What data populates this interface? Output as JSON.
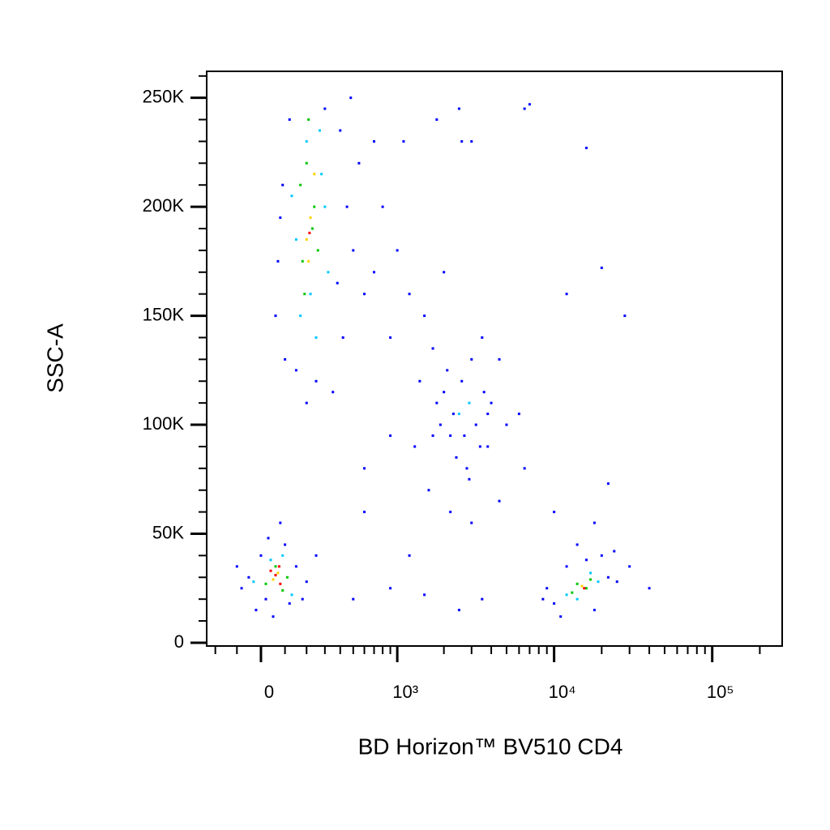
{
  "chart_data": {
    "type": "scatter",
    "x_label": "BD Horizon™ BV510 CD4",
    "y_label": "SSC-A",
    "xscale": "biexponential",
    "xlim": [
      -245,
      277000
    ],
    "ylim": [
      -1500,
      262144
    ],
    "xticks": [
      0,
      {
        "value": 1000,
        "label": "10³"
      },
      {
        "value": 10000,
        "label": "10⁴"
      },
      {
        "value": 100000,
        "label": "10⁵"
      }
    ],
    "xminorticks": [
      -200,
      -100,
      100,
      200,
      300,
      400,
      500,
      600,
      700,
      800,
      900,
      2000,
      3000,
      4000,
      5000,
      6000,
      7000,
      8000,
      9000,
      20000,
      30000,
      40000,
      50000,
      60000,
      70000,
      80000,
      90000,
      200000
    ],
    "yticks": [
      0,
      {
        "value": 50000,
        "label": "50K"
      },
      {
        "value": 100000,
        "label": "100K"
      },
      {
        "value": 150000,
        "label": "150K"
      },
      {
        "value": 200000,
        "label": "200K"
      },
      {
        "value": 250000,
        "label": "250K"
      }
    ],
    "yminorticks": [
      10000,
      20000,
      30000,
      40000,
      60000,
      70000,
      80000,
      90000,
      110000,
      120000,
      130000,
      140000,
      160000,
      170000,
      180000,
      190000,
      210000,
      220000,
      230000,
      240000,
      260000
    ],
    "series": [
      {
        "color": "#0000ff",
        "x": [
          60,
          90,
          120,
          400,
          450,
          380,
          100,
          150,
          500,
          420,
          70,
          300,
          250,
          550,
          80,
          350,
          600,
          700,
          480,
          200,
          800,
          1000,
          1200,
          900,
          1500,
          1100,
          1800,
          2500,
          3000,
          1400,
          1700,
          2000,
          3500,
          4000,
          5000,
          6000,
          1300,
          1600,
          2200,
          3000,
          4500,
          2800,
          3800,
          2100,
          900,
          700,
          600,
          4500,
          6500,
          2600,
          1800,
          2200,
          2600,
          3200,
          3600,
          2400,
          2900,
          1900,
          3400,
          2000,
          3000,
          2300,
          2700,
          3800,
          1700,
          0,
          20,
          -50,
          150,
          120,
          30,
          -80,
          200,
          80,
          -20,
          100,
          180,
          250,
          -100,
          50,
          9000,
          10000,
          12000,
          20000,
          22000,
          18000,
          25000,
          14000,
          8500,
          30000,
          40000,
          11000,
          16000,
          24000,
          16000,
          20000,
          28000,
          12000,
          22000,
          7000,
          600,
          1200,
          500,
          900,
          2500,
          3500,
          1500,
          6500,
          10000,
          18000
        ],
        "y": [
          150000,
          210000,
          240000,
          235000,
          200000,
          165000,
          130000,
          125000,
          180000,
          140000,
          175000,
          245000,
          120000,
          220000,
          195000,
          115000,
          160000,
          230000,
          250000,
          110000,
          200000,
          180000,
          160000,
          140000,
          150000,
          230000,
          240000,
          245000,
          230000,
          120000,
          135000,
          170000,
          140000,
          110000,
          100000,
          105000,
          90000,
          70000,
          60000,
          55000,
          65000,
          80000,
          90000,
          125000,
          95000,
          170000,
          80000,
          130000,
          245000,
          230000,
          110000,
          95000,
          120000,
          100000,
          115000,
          85000,
          75000,
          100000,
          90000,
          115000,
          130000,
          105000,
          95000,
          105000,
          95000,
          40000,
          20000,
          30000,
          35000,
          18000,
          48000,
          25000,
          28000,
          55000,
          15000,
          45000,
          20000,
          40000,
          35000,
          12000,
          25000,
          18000,
          35000,
          40000,
          30000,
          15000,
          28000,
          45000,
          20000,
          35000,
          25000,
          12000,
          38000,
          42000,
          227000,
          172000,
          150000,
          160000,
          73000,
          247000,
          60000,
          40000,
          20000,
          25000,
          15000,
          20000,
          22000,
          80000,
          60000,
          55000
        ]
      },
      {
        "color": "#00c8ff",
        "x": [
          200,
          280,
          150,
          320,
          170,
          250,
          300,
          130,
          220,
          270,
          2500,
          2900,
          40,
          130,
          -30,
          90,
          12000,
          17000,
          14000,
          19000
        ],
        "y": [
          230000,
          215000,
          185000,
          170000,
          150000,
          140000,
          200000,
          205000,
          160000,
          235000,
          105000,
          110000,
          38000,
          22000,
          28000,
          40000,
          22000,
          32000,
          20000,
          28000
        ]
      },
      {
        "color": "#00c800",
        "x": [
          200,
          240,
          180,
          260,
          210,
          190,
          230,
          170,
          60,
          110,
          20,
          90,
          14000,
          16000,
          13000,
          17000
        ],
        "y": [
          220000,
          200000,
          175000,
          180000,
          240000,
          160000,
          190000,
          210000,
          35000,
          30000,
          27000,
          24000,
          27000,
          25000,
          23000,
          29000
        ]
      },
      {
        "color": "#ffd200",
        "x": [
          220,
          210,
          240,
          200,
          70,
          50,
          15000
        ],
        "y": [
          195000,
          175000,
          215000,
          185000,
          32000,
          29000,
          26000
        ]
      },
      {
        "color": "#ff0000",
        "x": [
          215,
          60,
          80,
          40,
          75,
          15500
        ],
        "y": [
          188000,
          31000,
          27000,
          33000,
          35000,
          25000
        ]
      }
    ]
  }
}
